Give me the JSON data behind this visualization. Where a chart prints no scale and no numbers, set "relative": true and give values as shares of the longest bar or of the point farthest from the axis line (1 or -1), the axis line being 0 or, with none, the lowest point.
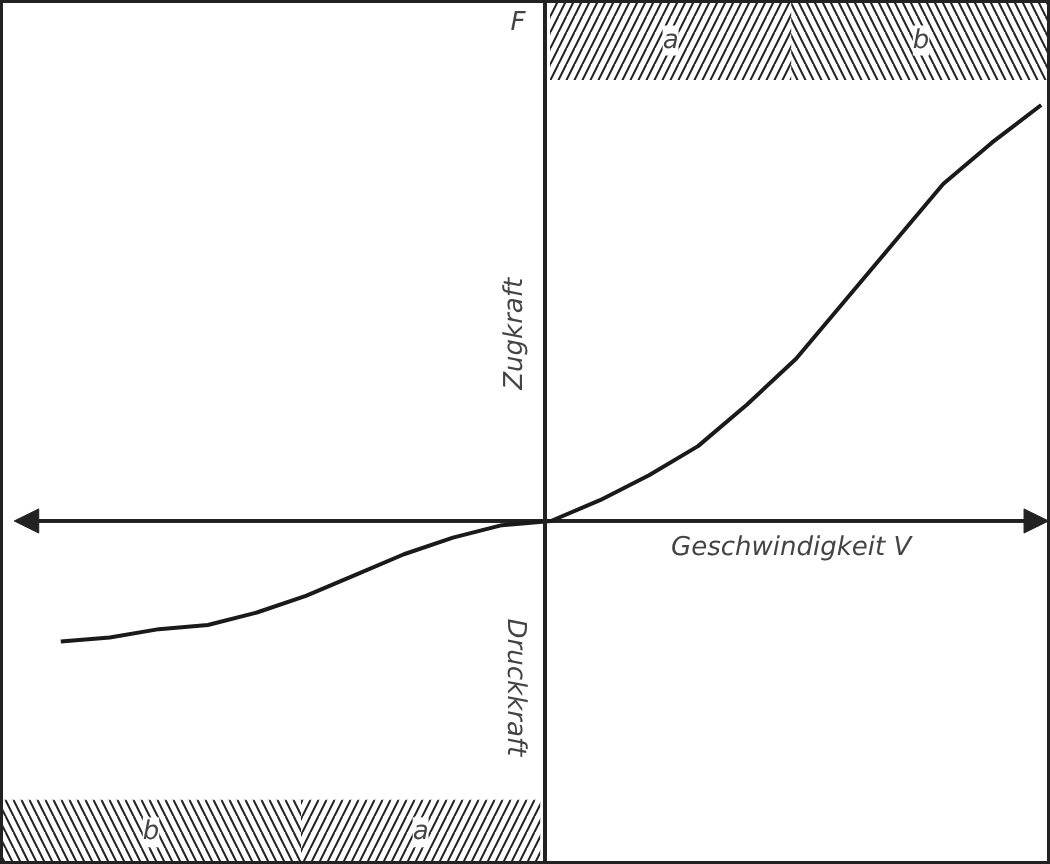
{
  "chart_data": {
    "type": "line",
    "relative": true,
    "xlabel": "Geschwindigkeit V",
    "ylabel": "F",
    "categories": [
      null,
      null,
      null,
      null,
      null,
      null,
      null,
      null,
      null,
      null,
      null,
      null,
      null,
      null,
      null,
      null,
      null,
      null,
      null,
      null,
      null
    ],
    "series": [
      {
        "color": "#1a1a1a",
        "values": [
          -0.29,
          -0.28,
          -0.26,
          -0.25,
          -0.22,
          -0.18,
          -0.13,
          -0.08,
          -0.04,
          -0.01,
          0.0,
          0.05,
          0.11,
          0.18,
          0.28,
          0.39,
          0.53,
          0.67,
          0.81,
          0.91,
          1.0
        ]
      }
    ],
    "ref_lines": [
      {
        "axis": "y",
        "value": 0
      }
    ],
    "annotations": [
      "Zugkraft",
      "Druckkraft",
      "a",
      "b",
      "b",
      "a"
    ]
  }
}
